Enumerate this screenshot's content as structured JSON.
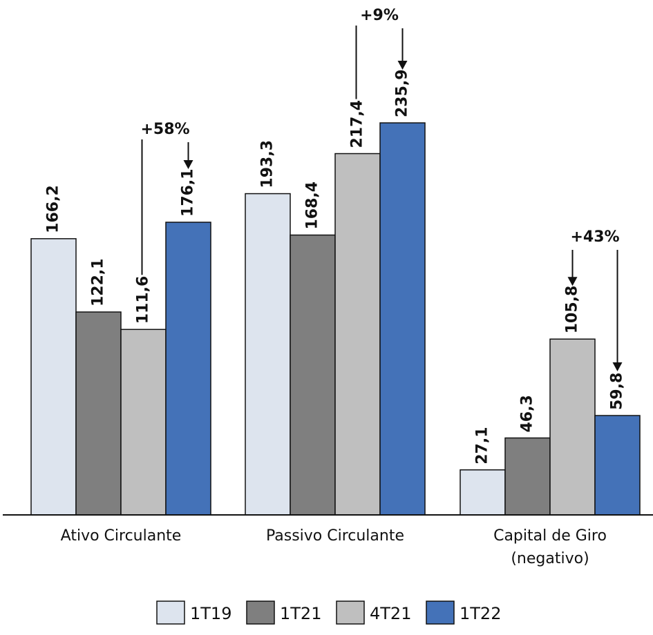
{
  "chart_data": {
    "type": "bar",
    "categories": [
      [
        "Ativo Circulante"
      ],
      [
        "Passivo Circulante"
      ],
      [
        "Capital de Giro",
        "(negativo)"
      ]
    ],
    "series": [
      {
        "name": "1T19",
        "color": "#dde4ee",
        "values": [
          166.2,
          193.3,
          27.1
        ],
        "labels": [
          "166,2",
          "193,3",
          "27,1"
        ]
      },
      {
        "name": "1T21",
        "color": "#7f7f7f",
        "values": [
          122.1,
          168.4,
          46.3
        ],
        "labels": [
          "122,1",
          "168,4",
          "46,3"
        ]
      },
      {
        "name": "4T21",
        "color": "#bfbfbf",
        "values": [
          111.6,
          217.4,
          105.8
        ],
        "labels": [
          "111,6",
          "217,4",
          "105,8"
        ]
      },
      {
        "name": "1T22",
        "color": "#4472b8",
        "values": [
          176.1,
          235.9,
          59.8
        ],
        "labels": [
          "176,1",
          "235,9",
          "59,8"
        ]
      }
    ],
    "ylim": [
      0,
      235.9
    ],
    "annotations": [
      {
        "category": 0,
        "from_series": 2,
        "to_series": 3,
        "text": "+58%"
      },
      {
        "category": 1,
        "from_series": 2,
        "to_series": 3,
        "text": "+9%"
      },
      {
        "category": 2,
        "from_series": 2,
        "to_series": 3,
        "text": "+43%"
      }
    ],
    "legend_position": "bottom",
    "grid": false,
    "title": "",
    "xlabel": "",
    "ylabel": ""
  }
}
